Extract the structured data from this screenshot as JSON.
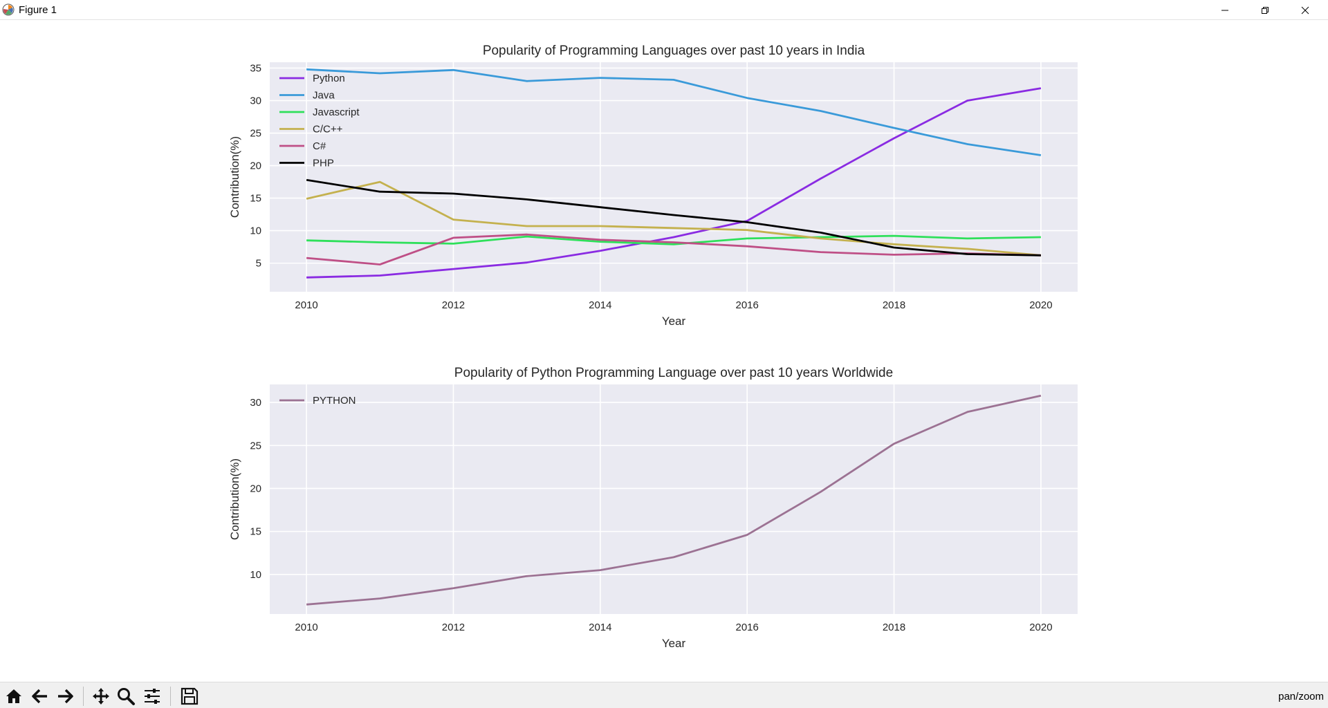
{
  "window": {
    "title": "Figure 1",
    "icon": "matplotlib-icon",
    "buttons": [
      "minimize-icon",
      "restore-icon",
      "close-icon"
    ]
  },
  "toolbar": {
    "tools": [
      "home-icon",
      "back-arrow-icon",
      "forward-arrow-icon",
      "pan-icon",
      "zoom-icon",
      "configure-subplots-icon",
      "save-icon"
    ],
    "status": "pan/zoom"
  },
  "colors": {
    "axes_bg": "#eaeaf2",
    "grid": "#ffffff"
  },
  "chart_data": [
    {
      "type": "line",
      "title": "Popularity of Programming Languages over past 10 years in India",
      "xlabel": "Year",
      "ylabel": "Contribution(%)",
      "x": [
        2010,
        2011,
        2012,
        2013,
        2014,
        2015,
        2016,
        2017,
        2018,
        2019,
        2020
      ],
      "xticks": [
        2010,
        2012,
        2014,
        2016,
        2018,
        2020
      ],
      "yticks": [
        5,
        10,
        15,
        20,
        25,
        30,
        35
      ],
      "xlim": [
        2009.5,
        2020.5
      ],
      "ylim": [
        0.6,
        35.9
      ],
      "grid": true,
      "legend": "upper-left",
      "series": [
        {
          "name": "Python",
          "color": "#8a2be2",
          "values": [
            2.8,
            3.1,
            4.1,
            5.1,
            6.9,
            9.0,
            11.5,
            18.0,
            24.2,
            30.0,
            31.9
          ]
        },
        {
          "name": "Java",
          "color": "#3a9ad9",
          "values": [
            34.8,
            34.2,
            34.7,
            33.0,
            33.5,
            33.2,
            30.4,
            28.4,
            25.8,
            23.3,
            21.6
          ]
        },
        {
          "name": "Javascript",
          "color": "#2ee05a",
          "values": [
            8.5,
            8.2,
            8.0,
            9.1,
            8.3,
            7.9,
            8.8,
            9.0,
            9.2,
            8.8,
            9.0
          ]
        },
        {
          "name": "C/C++",
          "color": "#c4b14e",
          "values": [
            14.9,
            17.5,
            11.7,
            10.7,
            10.7,
            10.4,
            10.1,
            8.8,
            7.9,
            7.2,
            6.2
          ]
        },
        {
          "name": "C#",
          "color": "#bf4f86",
          "values": [
            5.8,
            4.8,
            8.9,
            9.4,
            8.6,
            8.2,
            7.6,
            6.7,
            6.3,
            6.5,
            6.2
          ]
        },
        {
          "name": "PHP",
          "color": "#000000",
          "values": [
            17.8,
            16.0,
            15.7,
            14.8,
            13.6,
            12.4,
            11.3,
            9.7,
            7.4,
            6.4,
            6.2
          ]
        }
      ]
    },
    {
      "type": "line",
      "title": "Popularity of Python Programming Language over past 10 years Worldwide",
      "xlabel": "Year",
      "ylabel": "Contribution(%)",
      "x": [
        2010,
        2011,
        2012,
        2013,
        2014,
        2015,
        2016,
        2017,
        2018,
        2019,
        2020
      ],
      "xticks": [
        2010,
        2012,
        2014,
        2016,
        2018,
        2020
      ],
      "yticks": [
        10,
        15,
        20,
        25,
        30
      ],
      "xlim": [
        2009.5,
        2020.5
      ],
      "ylim": [
        5.4,
        32.1
      ],
      "grid": true,
      "legend": "upper-left",
      "series": [
        {
          "name": "PYTHON",
          "color": "#9c7293",
          "values": [
            6.5,
            7.2,
            8.4,
            9.8,
            10.5,
            12.0,
            14.6,
            19.6,
            25.2,
            28.9,
            30.8
          ]
        }
      ]
    }
  ]
}
